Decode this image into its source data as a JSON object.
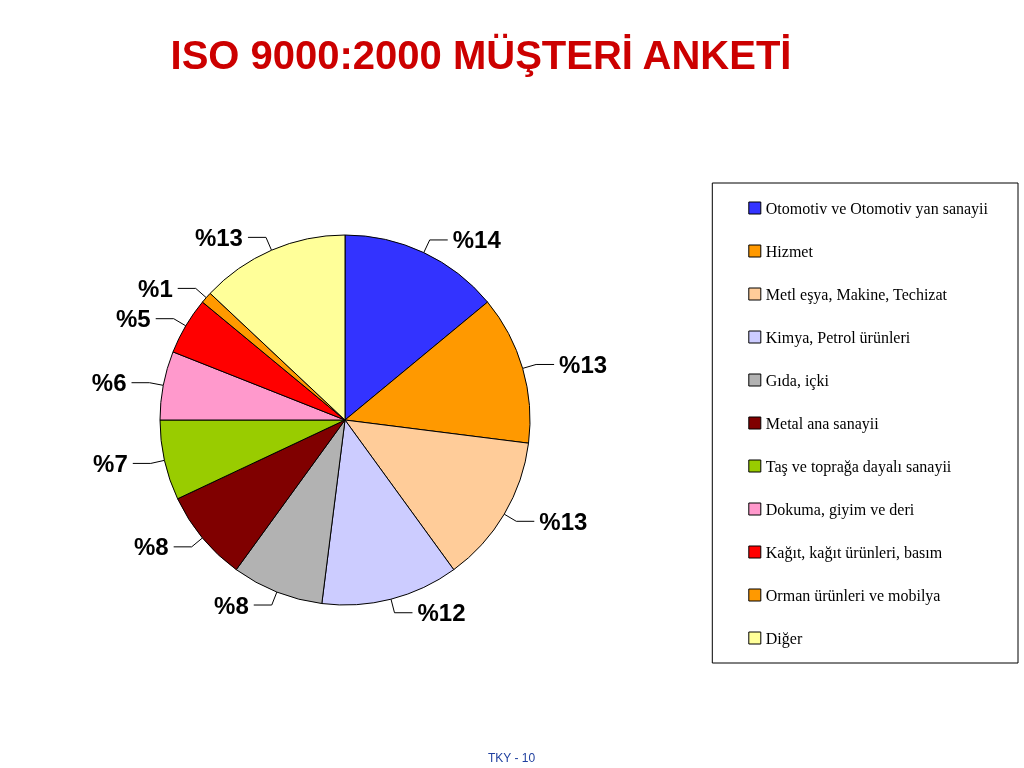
{
  "chart_data": {
    "type": "pie",
    "title": "ISO 9000:2000 MÜŞTERİ ANKETİ",
    "categories": [
      "Otomotiv ve Otomotiv yan sanayii",
      "Hizmet",
      "Metl eşya, Makine, Techizat",
      "Kimya, Petrol ürünleri",
      "Gıda, içki",
      "Metal ana sanayii",
      "Taş ve toprağa dayalı sanayii",
      "Dokuma, giyim ve deri",
      "Kağıt, kağıt ürünleri, basım",
      "Orman ürünleri ve mobilya",
      "Diğer"
    ],
    "values": [
      14,
      13,
      13,
      12,
      8,
      8,
      7,
      6,
      5,
      1,
      13
    ],
    "value_labels": [
      "%14",
      "%13",
      "%13",
      "%12",
      "%8",
      "%8",
      "%7",
      "%6",
      "%5",
      "%1",
      "%13"
    ],
    "colors": [
      "#3333ff",
      "#ff9900",
      "#ffcc99",
      "#ccccff",
      "#b2b2b2",
      "#800000",
      "#99cc00",
      "#ff99cc",
      "#ff0000",
      "#ff9900",
      "#ffff99"
    ],
    "legend": "right",
    "annotations": [
      "TKY - 10"
    ]
  }
}
